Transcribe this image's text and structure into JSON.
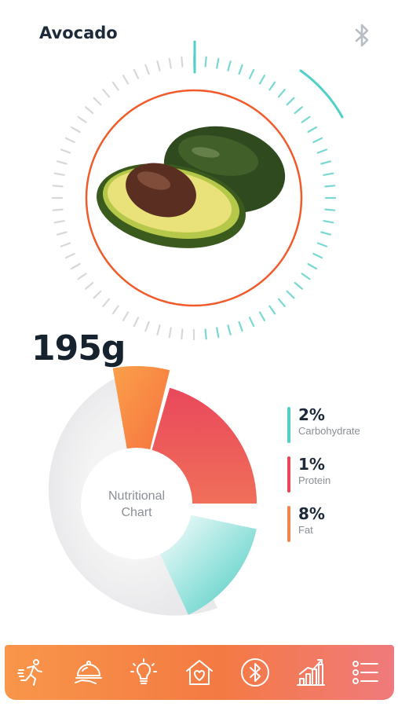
{
  "header": {
    "title": "Avocado",
    "bluetooth_icon": "bluetooth-icon"
  },
  "weight": {
    "value": "195g"
  },
  "food_image": {
    "icon": "avocado-image"
  },
  "colors": {
    "carbohydrate": "#4fd0c8",
    "protein": "#e9485b",
    "fat": "#f4854b",
    "ring": "#f15a29",
    "nav_start": "#f8964a",
    "nav_end": "#f07a7c"
  },
  "chart_data": {
    "type": "pie",
    "title": "",
    "center_label": [
      "Nutritional",
      "Chart"
    ],
    "series": [
      {
        "name": "Carbohydrate",
        "value_label": "2%",
        "value": 2
      },
      {
        "name": "Protein",
        "value_label": "1%",
        "value": 1
      },
      {
        "name": "Fat",
        "value_label": "8%",
        "value": 8
      }
    ]
  },
  "nav": {
    "items": [
      {
        "icon": "running-icon"
      },
      {
        "icon": "food-tray-icon"
      },
      {
        "icon": "lightbulb-icon"
      },
      {
        "icon": "heart-home-icon"
      },
      {
        "icon": "bluetooth-icon"
      },
      {
        "icon": "chart-icon"
      },
      {
        "icon": "list-icon"
      }
    ]
  }
}
